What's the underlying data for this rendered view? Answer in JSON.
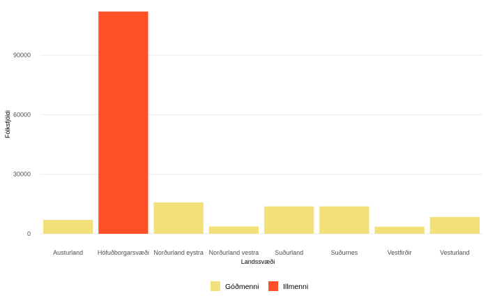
{
  "chart_data": {
    "type": "bar",
    "xlabel": "Landssvæði",
    "ylabel": "Fólksfjöldi",
    "ylim": [
      0,
      115000
    ],
    "yticks": [
      0,
      30000,
      60000,
      90000
    ],
    "ytick_labels": [
      "0",
      "30000",
      "60000",
      "90000"
    ],
    "grid": true,
    "legend_position": "bottom",
    "categories": [
      "Austurland",
      "Höfuðborgarsvæði",
      "Norðurland eystra",
      "Norðurland vestra",
      "Suðurland",
      "Suðurnes",
      "Vestfirðir",
      "Vesturland"
    ],
    "values": [
      7000,
      112000,
      15800,
      3700,
      13800,
      13800,
      3600,
      8500
    ],
    "groups": [
      "Góðmenni",
      "Illmenni",
      "Góðmenni",
      "Góðmenni",
      "Góðmenni",
      "Góðmenni",
      "Góðmenni",
      "Góðmenni"
    ],
    "legend": [
      {
        "name": "Góðmenni",
        "color": "#F2E07A"
      },
      {
        "name": "Illmenni",
        "color": "#FF5027"
      }
    ]
  }
}
